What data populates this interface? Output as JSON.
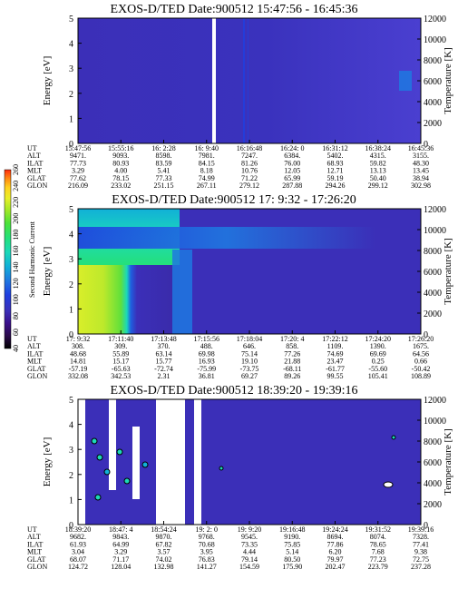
{
  "colors": {
    "background": "#ffffff",
    "baseline": "#3b2fb8",
    "colorbar": [
      "#000000",
      "#2a0a4a",
      "#3a0f8a",
      "#3b2fb8",
      "#1f3fe0",
      "#1f78e0",
      "#11b0d8",
      "#1cd9b8",
      "#25e07a",
      "#4be23a",
      "#9ee829",
      "#e8ef2a",
      "#ffd21f",
      "#ff8a12",
      "#ff2a0c"
    ]
  },
  "colorbar": {
    "label": "Second Harmonic Current",
    "ticks": [
      "40",
      "60",
      "80",
      "100",
      "120",
      "140",
      "160",
      "180",
      "200",
      "220",
      "240",
      "260"
    ]
  },
  "chart_data": [
    {
      "type": "heatmap",
      "title": "EXOS-D/TED   Date:900512   15:47:56 - 16:45:36",
      "ylabel": "Energy [eV]",
      "y2label": "Temperature [K]",
      "ylim": [
        0,
        5
      ],
      "y2lim": [
        0,
        12000
      ],
      "yticks": [
        "0",
        "1",
        "2",
        "3",
        "4",
        "5"
      ],
      "y2ticks": [
        "0",
        "2000",
        "4000",
        "6000",
        "8000",
        "10000",
        "12000"
      ],
      "row_labels": [
        "UT",
        "ALT",
        "ILAT",
        "MLT",
        "GLAT",
        "GLON"
      ],
      "columns": [
        [
          "15:47:56",
          "9471.",
          "77.73",
          "3.29",
          "77.62",
          "216.09"
        ],
        [
          "15:55:16",
          "9093.",
          "80.93",
          "4.00",
          "78.15",
          "233.02"
        ],
        [
          "16: 2:28",
          "8598.",
          "83.59",
          "5.41",
          "77.33",
          "251.15"
        ],
        [
          "16: 9:40",
          "7981.",
          "84.15",
          "8.18",
          "74.99",
          "267.11"
        ],
        [
          "16:16:48",
          "7247.",
          "81.26",
          "10.76",
          "71.22",
          "279.12"
        ],
        [
          "16:24: 0",
          "6384.",
          "76.00",
          "12.05",
          "65.99",
          "287.88"
        ],
        [
          "16:31:12",
          "5402.",
          "68.93",
          "12.71",
          "59.19",
          "294.26"
        ],
        [
          "16:38:24",
          "4315.",
          "59.82",
          "13.13",
          "50.40",
          "299.12"
        ],
        [
          "16:45:36",
          "3155.",
          "48.30",
          "13.45",
          "38.94",
          "302.98"
        ]
      ]
    },
    {
      "type": "heatmap",
      "title": "EXOS-D/TED   Date:900512   17: 9:32 - 17:26:20",
      "ylabel": "Energy [eV]",
      "y2label": "Temperature [K]",
      "ylim": [
        0,
        5
      ],
      "y2lim": [
        0,
        12000
      ],
      "yticks": [
        "0",
        "1",
        "2",
        "3",
        "4",
        "5"
      ],
      "y2ticks": [
        "0",
        "2000",
        "4000",
        "6000",
        "8000",
        "10000",
        "12000"
      ],
      "row_labels": [
        "UT",
        "ALT",
        "ILAT",
        "MLT",
        "GLAT",
        "GLON"
      ],
      "columns": [
        [
          "17: 9:32",
          "308.",
          "48.68",
          "14.81",
          "-57.19",
          "332.08"
        ],
        [
          "17:11:40",
          "309.",
          "55.89",
          "15.17",
          "-65.63",
          "342.53"
        ],
        [
          "17:13:48",
          "370.",
          "63.14",
          "15.77",
          "-72.74",
          "2.31"
        ],
        [
          "17:15:56",
          "488.",
          "69.98",
          "16.93",
          "-75.99",
          "36.81"
        ],
        [
          "17:18:04",
          "646.",
          "75.14",
          "19.10",
          "-73.75",
          "69.27"
        ],
        [
          "17:20: 4",
          "858.",
          "77.26",
          "21.88",
          "-68.11",
          "89.26"
        ],
        [
          "17:22:12",
          "1109.",
          "74.69",
          "23.47",
          "-61.77",
          "99.55"
        ],
        [
          "17:24:20",
          "1390.",
          "69.69",
          "0.25",
          "-55.60",
          "105.41"
        ],
        [
          "17:26:20",
          "1675.",
          "64.56",
          "0.66",
          "-50.42",
          "108.89"
        ]
      ]
    },
    {
      "type": "heatmap",
      "title": "EXOS-D/TED   Date:900512   18:39:20 - 19:39:16",
      "ylabel": "Energy [eV]",
      "y2label": "Temperature [K]",
      "ylim": [
        0,
        5
      ],
      "y2lim": [
        0,
        12000
      ],
      "yticks": [
        "0",
        "1",
        "2",
        "3",
        "4",
        "5"
      ],
      "y2ticks": [
        "0",
        "2000",
        "4000",
        "6000",
        "8000",
        "10000",
        "12000"
      ],
      "row_labels": [
        "UT",
        "ALT",
        "ILAT",
        "MLT",
        "GLAT",
        "GLON"
      ],
      "columns": [
        [
          "18:39:20",
          "9682.",
          "61.93",
          "3.04",
          "68.07",
          "124.72"
        ],
        [
          "18:47: 4",
          "9843.",
          "64.99",
          "3.29",
          "71.17",
          "128.04"
        ],
        [
          "18:54:24",
          "9870.",
          "67.82",
          "3.57",
          "74.02",
          "132.98"
        ],
        [
          "19: 2: 0",
          "9768.",
          "70.68",
          "3.95",
          "76.83",
          "141.27"
        ],
        [
          "19: 9:20",
          "9545.",
          "73.35",
          "4.44",
          "79.14",
          "154.59"
        ],
        [
          "19:16:48",
          "9190.",
          "75.85",
          "5.14",
          "80.50",
          "175.90"
        ],
        [
          "19:24:24",
          "8694.",
          "77.86",
          "6.20",
          "79.97",
          "202.47"
        ],
        [
          "19:31:52",
          "8074.",
          "78.65",
          "7.68",
          "77.23",
          "223.79"
        ],
        [
          "19:39:16",
          "7328.",
          "77.41",
          "9.38",
          "72.75",
          "237.28"
        ]
      ]
    }
  ]
}
